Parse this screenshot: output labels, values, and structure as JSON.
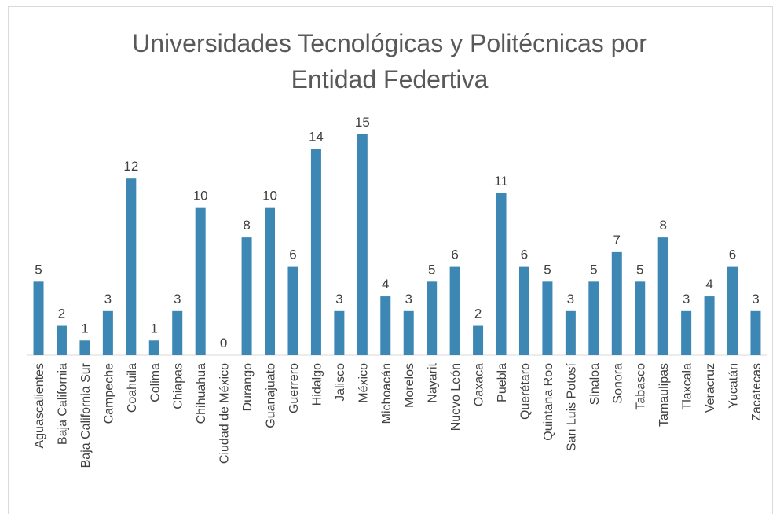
{
  "chart_data": {
    "type": "bar",
    "title": "Universidades Tecnológicas y Politécnicas por Entidad Federtiva",
    "categories": [
      "Aguascalientes",
      "Baja California",
      "Baja California Sur",
      "Campeche",
      "Coahuila",
      "Colima",
      "Chiapas",
      "Chihuahua",
      "Ciudad de México",
      "Durango",
      "Guanajuato",
      "Guerrero",
      "Hidalgo",
      "Jalisco",
      "México",
      "Michoacán",
      "Morelos",
      "Nayarit",
      "Nuevo León",
      "Oaxaca",
      "Puebla",
      "Querétaro",
      "Quintana Roo",
      "San Luis Potosí",
      "Sinaloa",
      "Sonora",
      "Tabasco",
      "Tamaulipas",
      "Tlaxcala",
      "Veracruz",
      "Yucatán",
      "Zacatecas"
    ],
    "values": [
      5,
      2,
      1,
      3,
      12,
      1,
      3,
      10,
      0,
      8,
      10,
      6,
      14,
      3,
      15,
      4,
      3,
      5,
      6,
      2,
      11,
      6,
      5,
      3,
      5,
      7,
      5,
      8,
      3,
      4,
      6,
      3
    ],
    "color": "#3c87b4",
    "ylim": [
      0,
      15
    ]
  }
}
